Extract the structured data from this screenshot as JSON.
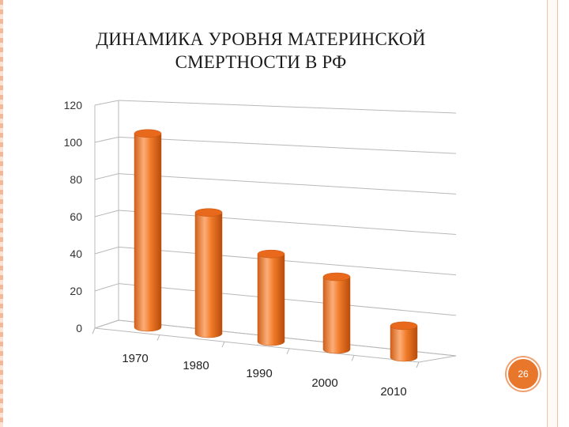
{
  "title": {
    "line1": "ДИНАМИКА УРОВНЯ МАТЕРИНСКОЙ",
    "line2": "СМЕРТНОСТИ В РФ"
  },
  "page_number": "26",
  "colors": {
    "bar_base": "#f07a28",
    "bar_dark": "#c45510",
    "bar_light": "#fbb07a",
    "bar_top": "#e8691c",
    "grid": "#b8b8b8",
    "badge": "#e8772b",
    "border": "#f1b89a"
  },
  "chart_data": {
    "type": "bar",
    "style": "3d-cylinder",
    "categories": [
      "1970",
      "1980",
      "1990",
      "2000",
      "2010"
    ],
    "values": [
      104,
      65,
      47,
      39,
      17
    ],
    "yticks": [
      "0",
      "20",
      "40",
      "60",
      "80",
      "100",
      "120"
    ],
    "ylim": [
      0,
      120
    ],
    "grid": true,
    "legend": "none"
  }
}
